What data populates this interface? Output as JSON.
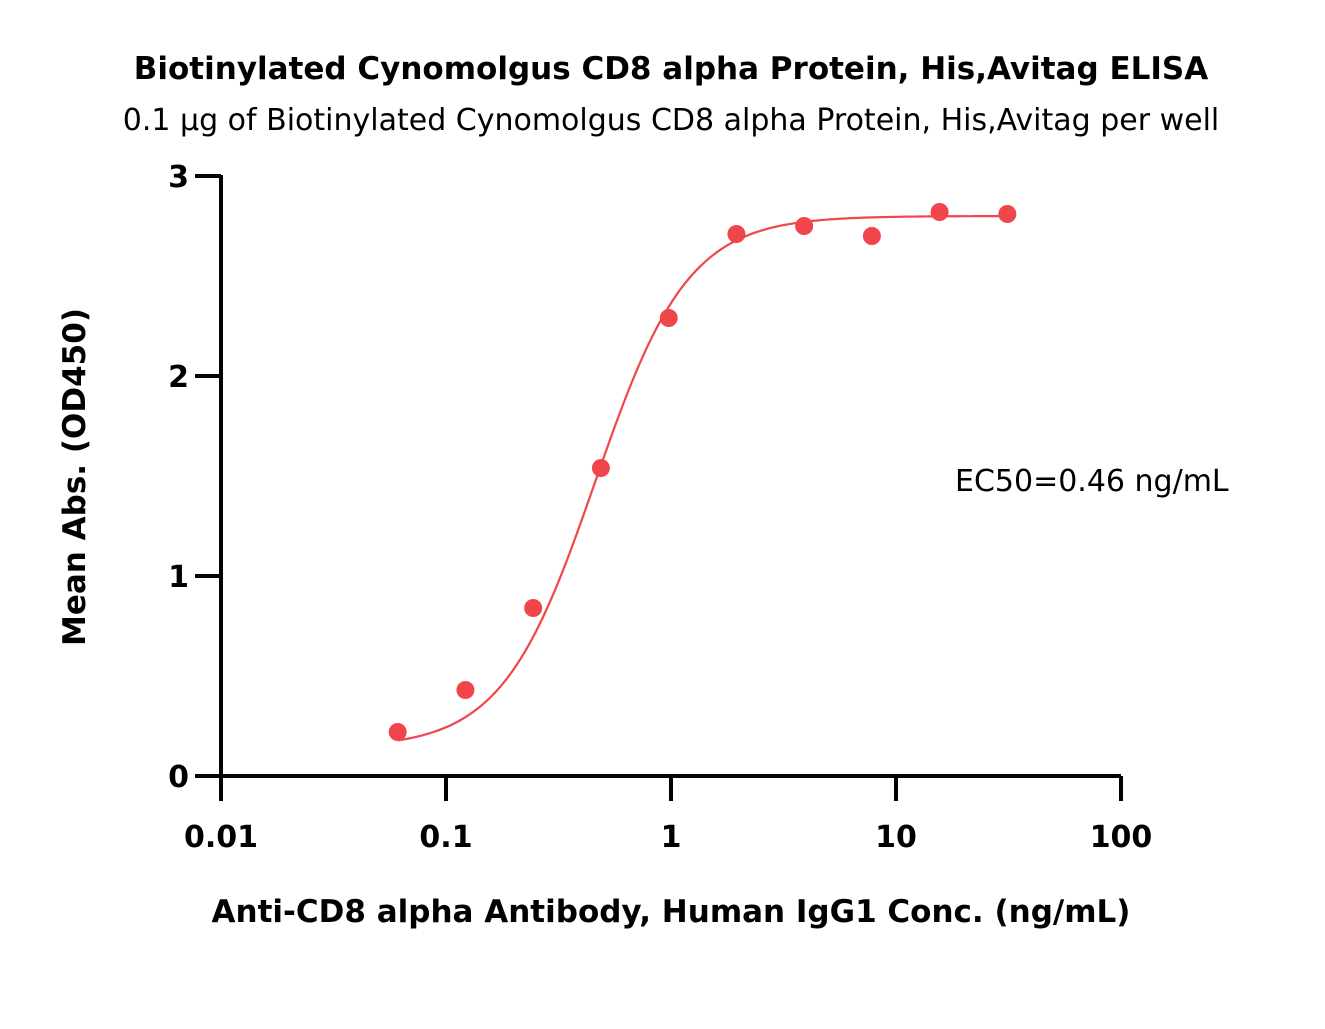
{
  "chart_data": {
    "type": "scatter",
    "title": "Biotinylated Cynomolgus CD8 alpha Protein, His,Avitag ELISA",
    "subtitle": "0.1 µg of Biotinylated Cynomolgus CD8 alpha Protein, His,Avitag per well",
    "xlabel": "Anti-CD8 alpha Antibody, Human IgG1 Conc. (ng/mL)",
    "ylabel": "Mean Abs. (OD450)",
    "x_scale": "log",
    "xlim": [
      0.01,
      100
    ],
    "ylim": [
      0,
      3
    ],
    "x_ticks": [
      0.01,
      0.1,
      1,
      10,
      100
    ],
    "x_tick_labels": [
      "0.01",
      "0.1",
      "1",
      "10",
      "100"
    ],
    "y_ticks": [
      0,
      1,
      2,
      3
    ],
    "y_tick_labels": [
      "0",
      "1",
      "2",
      "3"
    ],
    "grid": false,
    "legend": "none",
    "annotation": "EC50=0.46 ng/mL",
    "series": [
      {
        "color": "#f0454b",
        "x": [
          0.061,
          0.122,
          0.244,
          0.488,
          0.977,
          1.953,
          3.906,
          7.813,
          15.625,
          31.25
        ],
        "y": [
          0.22,
          0.43,
          0.84,
          1.54,
          2.29,
          2.71,
          2.75,
          2.7,
          2.82,
          2.81
        ],
        "fit": {
          "model": "4PL",
          "bottom": 0.14,
          "top": 2.8,
          "ec50": 0.46,
          "hill": 2.1,
          "x_range": [
            0.061,
            31.25
          ]
        }
      }
    ]
  }
}
